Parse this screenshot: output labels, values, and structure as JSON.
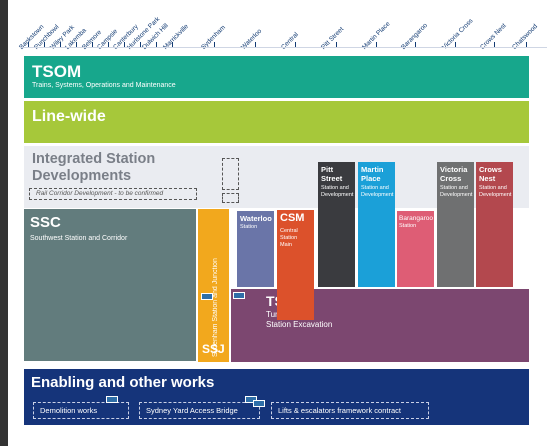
{
  "stations": [
    "Bankstown",
    "Punchbowl",
    "Wiley Park",
    "Lakemba",
    "Belmore",
    "Campsie",
    "Canterbury",
    "Hurlstone Park",
    "Dulwich Hill",
    "Marrickville",
    "Sydenham",
    "Waterloo",
    "Central",
    "Pitt Street",
    "Martin Place",
    "Barangaroo",
    "Victoria Cross",
    "Crows Nest",
    "Chatswood"
  ],
  "tsom": {
    "title": "TSOM",
    "subtitle": "Trains, Systems, Operations and Maintenance"
  },
  "linewide": {
    "title": "Line-wide"
  },
  "isd": {
    "title": "Integrated Station Developments",
    "rail_corridor": "Rail Corridor Development - to be confirmed"
  },
  "ssc": {
    "title": "SSC",
    "subtitle": "Southwest Station and Corridor"
  },
  "ssj": {
    "title": "SSJ",
    "subtitle": "Sydenham Station and Junction"
  },
  "waterloo": {
    "title": "Waterloo",
    "subtitle": "Station"
  },
  "csm": {
    "title": "CSM",
    "subtitle": "Central Station Main"
  },
  "tsc": {
    "title": "TSE",
    "subtitle": "Tunnels and Station Excavation"
  },
  "pitt": {
    "title": "Pitt Street",
    "subtitle": "Station and Development"
  },
  "martin": {
    "title": "Martin Place",
    "subtitle": "Station and Development"
  },
  "barangaroo": {
    "title": "Barangaroo",
    "subtitle": "Station"
  },
  "victoria": {
    "title": "Victoria Cross",
    "subtitle": "Station and Development"
  },
  "crows": {
    "title": "Crows Nest",
    "subtitle": "Station and Development"
  },
  "enabling": {
    "title": "Enabling and other works",
    "works": [
      "Demolition works",
      "Sydney Yard Access Bridge",
      "Lifts & escalators framework contract"
    ]
  },
  "colors": {
    "tsom": "#17a78c",
    "linewide": "#a6c83a",
    "ssc": "#627c7d",
    "ssj": "#f2a81d",
    "waterloo": "#6a75a8",
    "csm": "#dc512b",
    "tsc": "#7c4770",
    "pitt": "#3a3b3f",
    "martin": "#1ba0d8",
    "barangaroo": "#de5d75",
    "victoria": "#6f7071",
    "crows": "#b3484e",
    "enabling": "#15347a"
  }
}
